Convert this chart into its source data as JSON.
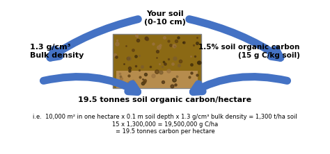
{
  "bg_color": "#ffffff",
  "arrow_color": "#4472c4",
  "text_color": "#000000",
  "bold_text_color": "#1f497d",
  "top_label": "Your soil\n(0-10 cm)",
  "left_label": "1.3 g/cm³\nBulk density",
  "right_label": "1.5% soil organic carbon\n(15 g C/kg soil)",
  "bottom_label": "19.5 tonnes soil organic carbon/hectare",
  "footnote_line1": "i.e.  10,000 m² in one hectare x 0.1 m soil depth x 1.3 g/cm³ bulk density = 1,300 t/ha soil",
  "footnote_line2": "15 x 1,300,000 = 19,500,000 g C/ha",
  "footnote_line3": "= 19.5 tonnes carbon per hectare"
}
